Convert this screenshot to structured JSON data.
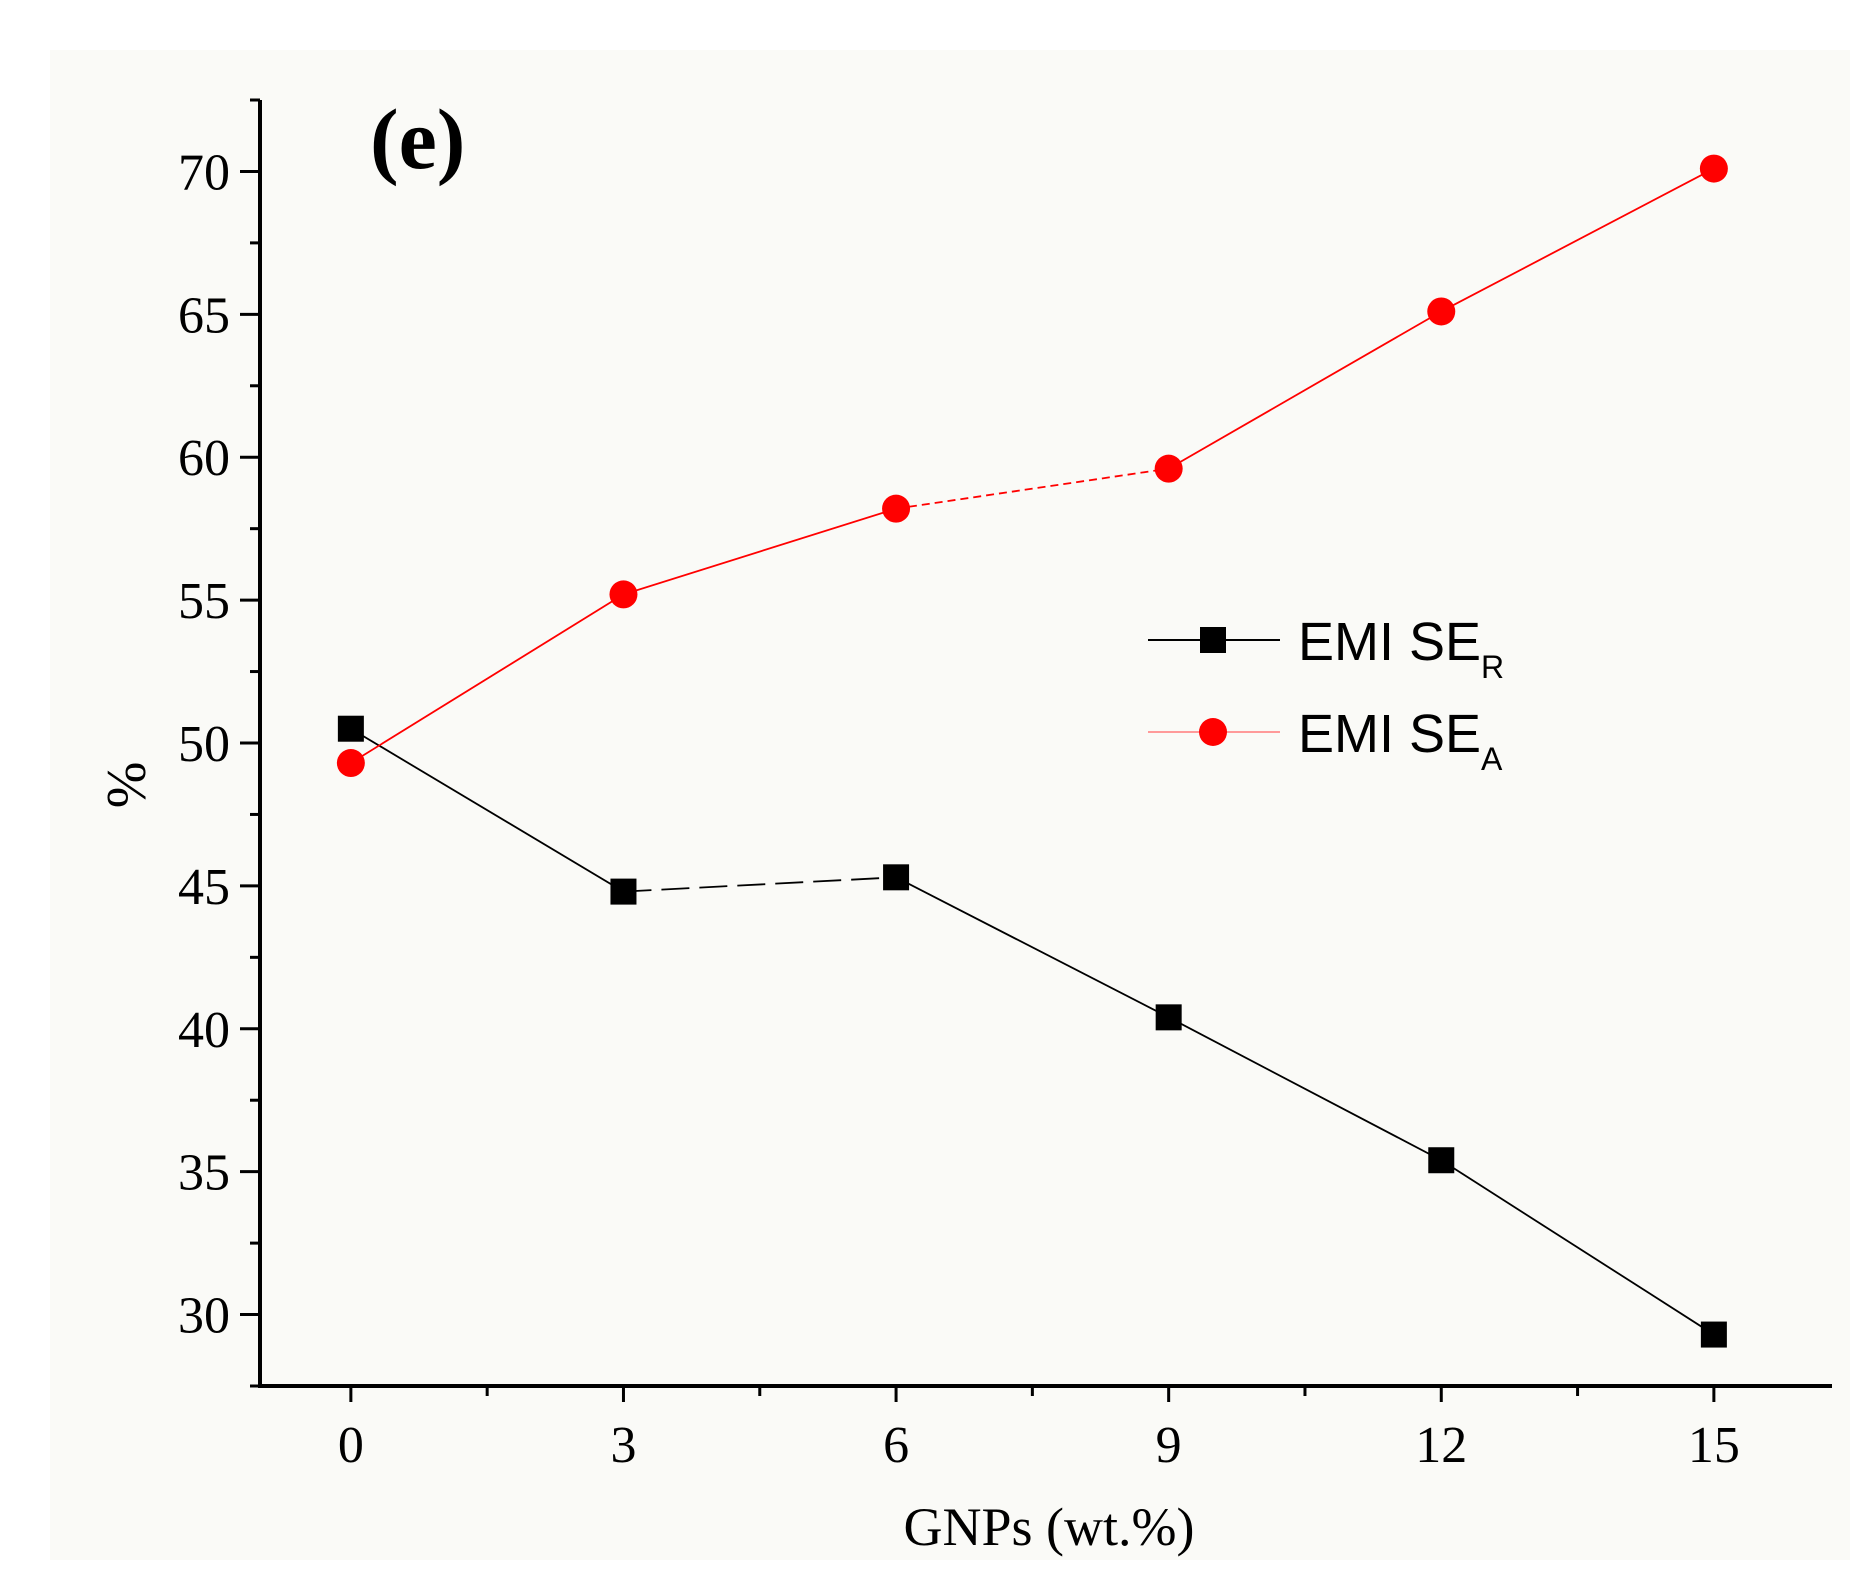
{
  "panel_label": "(e)",
  "colors": {
    "series_r": "#000000",
    "series_a": "#ff0000",
    "axis": "#000000"
  },
  "chart_data": {
    "type": "line",
    "title": "",
    "xlabel": "GNPs (wt.%)",
    "ylabel": "%",
    "xlim": [
      -1,
      16.3
    ],
    "ylim": [
      27.5,
      72.5
    ],
    "xticks": [
      0,
      3,
      6,
      9,
      12,
      15
    ],
    "yticks": [
      30,
      35,
      40,
      45,
      50,
      55,
      60,
      65,
      70
    ],
    "x": [
      0,
      3,
      6,
      9,
      12,
      15
    ],
    "series": [
      {
        "name": "EMI SE",
        "sub": "R",
        "marker": "square",
        "values": [
          50.5,
          44.8,
          45.3,
          40.4,
          35.4,
          29.3
        ]
      },
      {
        "name": "EMI SE",
        "sub": "A",
        "marker": "circle",
        "values": [
          49.3,
          55.2,
          58.2,
          59.6,
          65.1,
          70.1
        ]
      }
    ],
    "legend_position": "center-right",
    "grid": false
  }
}
